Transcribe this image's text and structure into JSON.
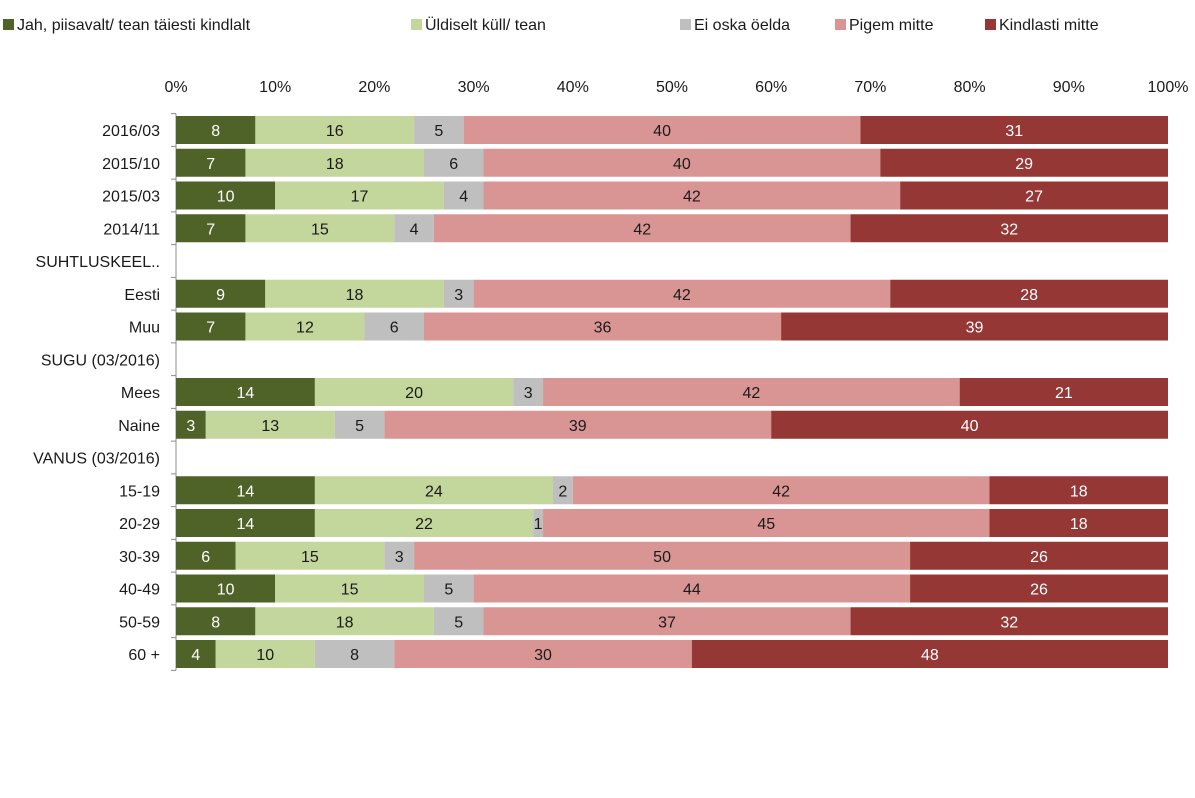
{
  "chart_data": {
    "type": "bar",
    "orientation": "horizontal",
    "stacked": "percent",
    "legend_position": "top",
    "grid": false,
    "xlim": [
      0,
      100
    ],
    "x_ticks": [
      "0%",
      "10%",
      "20%",
      "30%",
      "40%",
      "50%",
      "60%",
      "70%",
      "80%",
      "90%",
      "100%"
    ],
    "categories": [
      "2016/03",
      "2015/10",
      "2015/03",
      "2014/11",
      "SUHTLUSKEEL..",
      "Eesti",
      "Muu",
      "SUGU (03/2016)",
      "Mees",
      "Naine",
      "VANUS (03/2016)",
      "15-19",
      "20-29",
      "30-39",
      "40-49",
      "50-59",
      "60 +"
    ],
    "series": [
      {
        "name": "Jah, piisavalt/ tean täiesti kindlalt",
        "color": "#4f6228",
        "label_color": "#ffffff",
        "values": [
          8,
          7,
          10,
          7,
          null,
          9,
          7,
          null,
          14,
          3,
          null,
          14,
          14,
          6,
          10,
          8,
          4
        ]
      },
      {
        "name": "Üldiselt küll/ tean",
        "color": "#c3d69b",
        "label_color": "#1a1a1a",
        "values": [
          16,
          18,
          17,
          15,
          null,
          18,
          12,
          null,
          20,
          13,
          null,
          24,
          22,
          15,
          15,
          18,
          10
        ]
      },
      {
        "name": "Ei oska öelda",
        "color": "#bfbfbf",
        "label_color": "#1a1a1a",
        "values": [
          5,
          6,
          4,
          4,
          null,
          3,
          6,
          null,
          3,
          5,
          null,
          2,
          1,
          3,
          5,
          5,
          8
        ]
      },
      {
        "name": "Pigem mitte",
        "color": "#d99594",
        "label_color": "#1a1a1a",
        "values": [
          40,
          40,
          42,
          42,
          null,
          42,
          36,
          null,
          42,
          39,
          null,
          42,
          45,
          50,
          44,
          37,
          30
        ]
      },
      {
        "name": "Kindlasti mitte",
        "color": "#953735",
        "label_color": "#ffffff",
        "values": [
          31,
          29,
          27,
          32,
          null,
          28,
          39,
          null,
          21,
          40,
          null,
          18,
          18,
          26,
          26,
          32,
          48
        ]
      }
    ]
  }
}
